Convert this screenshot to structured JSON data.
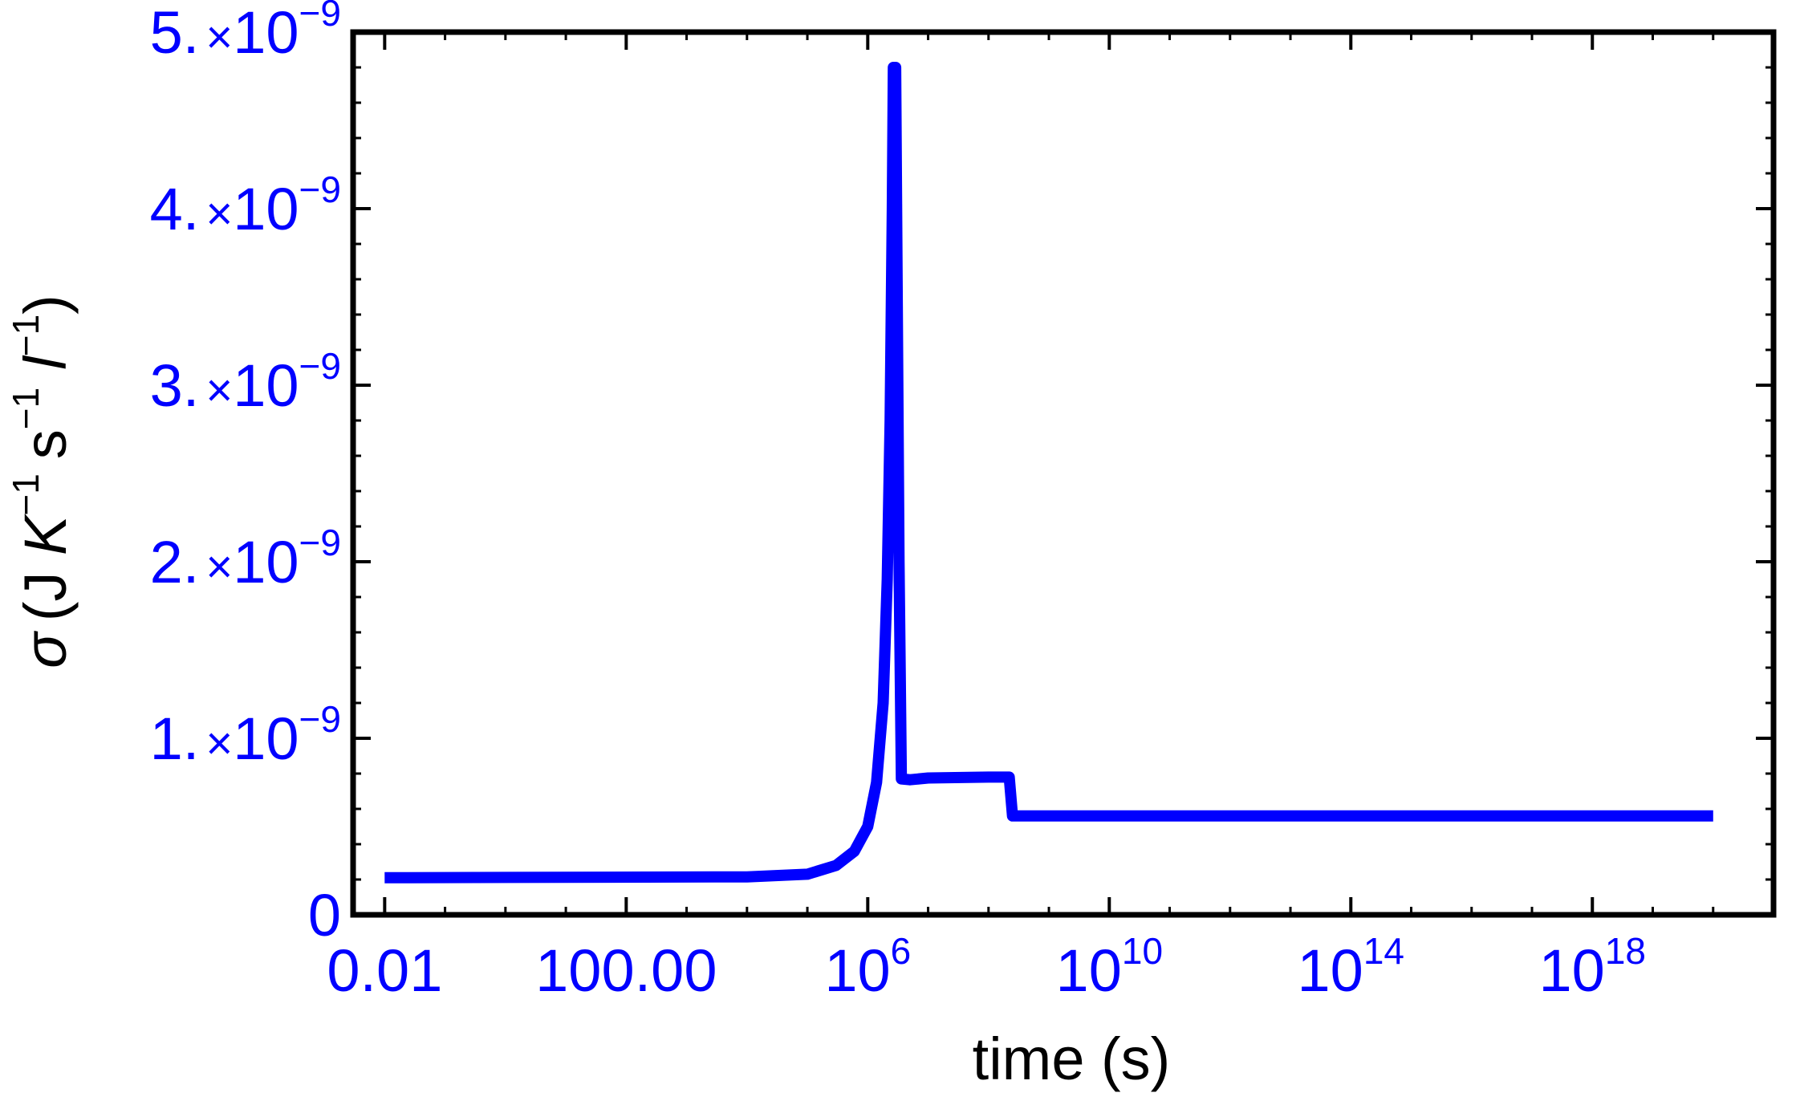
{
  "chart_data": {
    "type": "line",
    "xscale": "log",
    "xlabel": "time (s)",
    "ylabel": {
      "sigma": "σ",
      "open": "(J ",
      "K": "K",
      "s": "s",
      "l": "l",
      "exp": "−1",
      "close": ")"
    },
    "xlim": [
      0.003,
      1e+21
    ],
    "ylim": [
      0,
      5e-09
    ],
    "x_ticks": [
      {
        "value": 0.01,
        "base": "0.01",
        "exp": ""
      },
      {
        "value": 100,
        "base": "100.00",
        "exp": ""
      },
      {
        "value": 1000000.0,
        "base": "10",
        "exp": "6"
      },
      {
        "value": 10000000000.0,
        "base": "10",
        "exp": "10"
      },
      {
        "value": 100000000000000.0,
        "base": "10",
        "exp": "14"
      },
      {
        "value": 1e+18,
        "base": "10",
        "exp": "18"
      }
    ],
    "y_ticks": [
      {
        "value": 0,
        "mant": "0",
        "times": "",
        "base": "",
        "exp": ""
      },
      {
        "value": 1e-09,
        "mant": "1.",
        "times": "×",
        "base": "10",
        "exp": "−9"
      },
      {
        "value": 2e-09,
        "mant": "2.",
        "times": "×",
        "base": "10",
        "exp": "−9"
      },
      {
        "value": 3e-09,
        "mant": "3.",
        "times": "×",
        "base": "10",
        "exp": "−9"
      },
      {
        "value": 4e-09,
        "mant": "4.",
        "times": "×",
        "base": "10",
        "exp": "−9"
      },
      {
        "value": 5e-09,
        "mant": "5.",
        "times": "×",
        "base": "10",
        "exp": "−9"
      }
    ],
    "series": [
      {
        "color": "#0000ff",
        "points": [
          [
            0.01,
            2.1e-10
          ],
          [
            10000.0,
            2.15e-10
          ],
          [
            100000.0,
            2.3e-10
          ],
          [
            300000.0,
            2.8e-10
          ],
          [
            600000.0,
            3.6e-10
          ],
          [
            1000000.0,
            5e-10
          ],
          [
            1400000.0,
            7.5e-10
          ],
          [
            1800000.0,
            1.2e-09
          ],
          [
            2100000.0,
            1.9e-09
          ],
          [
            2350000.0,
            2.8e-09
          ],
          [
            2550000.0,
            4e-09
          ],
          [
            2650000.0,
            4.8e-09
          ],
          [
            2900000.0,
            4.8e-09
          ],
          [
            3300000.0,
            2e-09
          ],
          [
            3600000.0,
            7.7e-10
          ],
          [
            5000000.0,
            7.65e-10
          ],
          [
            10000000.0,
            7.75e-10
          ],
          [
            100000000.0,
            7.8e-10
          ],
          [
            220000000.0,
            7.8e-10
          ],
          [
            250000000.0,
            5.6e-10
          ],
          [
            10000000000.0,
            5.6e-10
          ],
          [
            1e+20,
            5.6e-10
          ]
        ]
      }
    ],
    "colors": {
      "tick_labels": "#0000ff",
      "axis_title": "#000000",
      "frame": "#000000"
    },
    "grid": false
  }
}
